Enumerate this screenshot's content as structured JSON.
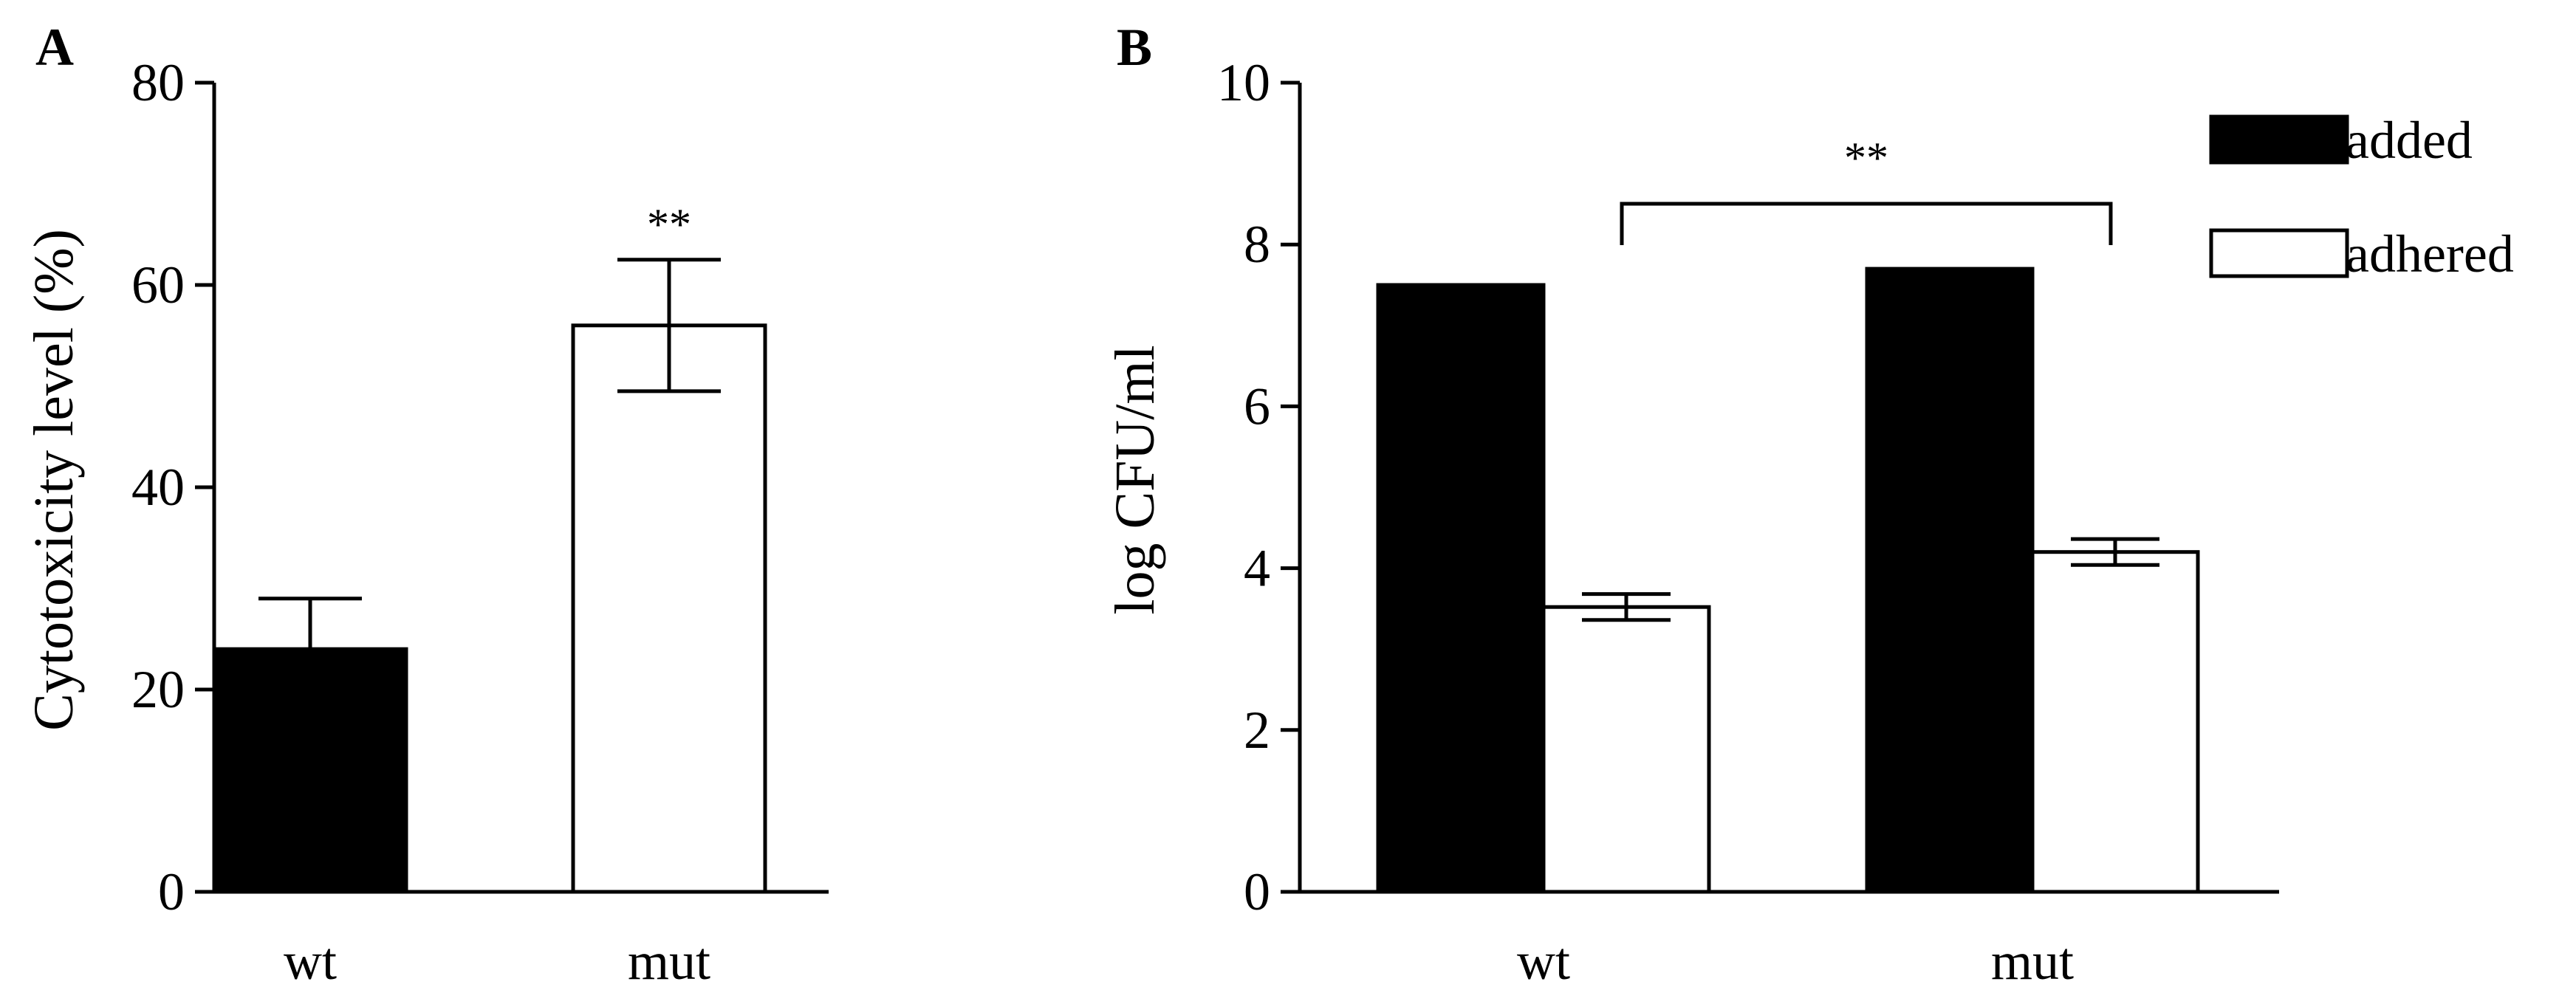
{
  "chart_data": [
    {
      "panel": "A",
      "type": "bar",
      "categories": [
        "wt",
        "mut"
      ],
      "values": [
        24,
        56
      ],
      "errors": [
        5,
        6.5
      ],
      "colors": [
        "#000000",
        "#ffffff"
      ],
      "ylabel": "Cytotoxicity level (%)",
      "xlabel": "",
      "ylim": [
        0,
        80
      ],
      "yticks": [
        0,
        20,
        40,
        60,
        80
      ],
      "annotations": [
        {
          "category": "mut",
          "text": "**"
        }
      ],
      "grid": false
    },
    {
      "panel": "B",
      "type": "bar",
      "categories": [
        "wt",
        "mut"
      ],
      "series": [
        {
          "name": "added",
          "values": [
            7.5,
            7.7
          ],
          "errors": [
            0.03,
            0.04
          ],
          "color": "#000000"
        },
        {
          "name": "adhered",
          "values": [
            3.52,
            4.2
          ],
          "errors": [
            0.16,
            0.16
          ],
          "color": "#ffffff"
        }
      ],
      "ylabel": "log CFU/ml",
      "xlabel": "",
      "ylim": [
        0,
        10
      ],
      "yticks": [
        0,
        2,
        4,
        6,
        8,
        10
      ],
      "legend": "top-right",
      "annotations": [
        {
          "between": [
            "wt",
            "mut"
          ],
          "text": "**"
        }
      ],
      "grid": false
    }
  ]
}
